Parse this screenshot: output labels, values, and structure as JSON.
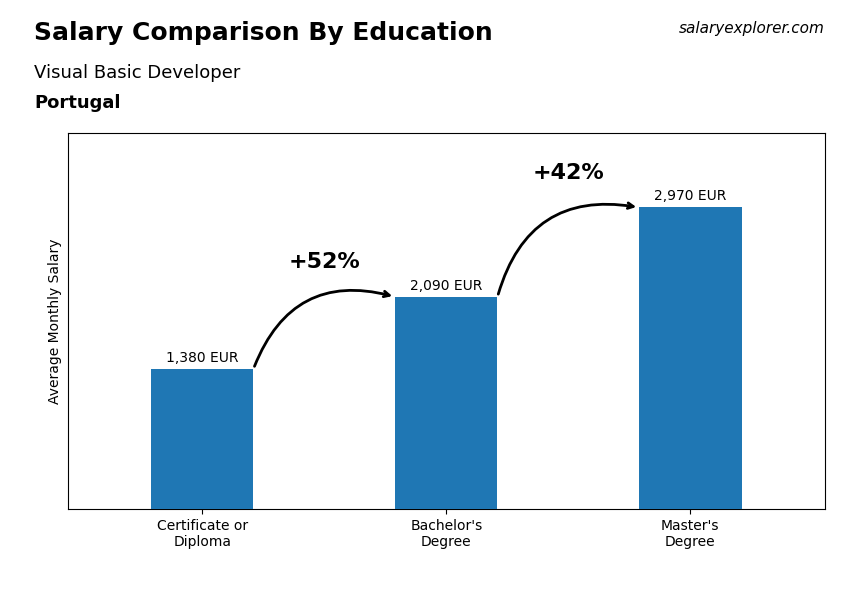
{
  "chart_data": {
    "type": "bar",
    "title": "Salary Comparison By Education",
    "subtitle": "Visual Basic Developer",
    "country": "Portugal",
    "source": "salaryexplorer.com",
    "ylabel": "Average Monthly Salary",
    "categories": [
      "Certificate or\nDiploma",
      "Bachelor's\nDegree",
      "Master's\nDegree"
    ],
    "values": [
      1380,
      2090,
      2970
    ],
    "value_labels": [
      "1,380 EUR",
      "2,090 EUR",
      "2,970 EUR"
    ],
    "data_labels": true,
    "annotations": [
      "+52%",
      "+42%"
    ],
    "ylim": [
      0,
      3700
    ],
    "yticks": [],
    "tick_labels": "x",
    "grid": false
  }
}
